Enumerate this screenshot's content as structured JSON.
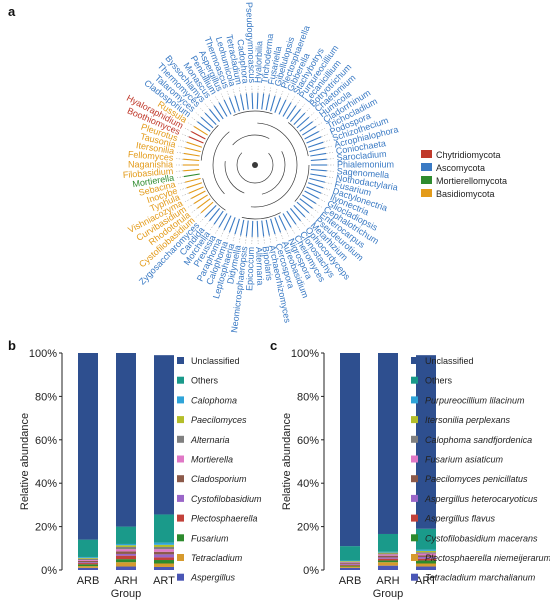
{
  "panel_labels": {
    "a": "a",
    "b": "b",
    "c": "c"
  },
  "phylum_colors": {
    "Chytridiomycota": "#c0392b",
    "Ascomycota": "#3a7ac4",
    "Mortierellomycota": "#2e8b2e",
    "Basidiomycota": "#e39b1a"
  },
  "chart_data": [
    {
      "type": "tree",
      "panel": "a",
      "legend": [
        "Chytridiomycota",
        "Ascomycota",
        "Mortierellomycota",
        "Basidiomycota"
      ],
      "tips": [
        {
          "name": "Hyalorbilia",
          "phylum": "Ascomycota"
        },
        {
          "name": "Trichoderma",
          "phylum": "Ascomycota"
        },
        {
          "name": "Fusariella",
          "phylum": "Ascomycota"
        },
        {
          "name": "Gibellulopsis",
          "phylum": "Ascomycota"
        },
        {
          "name": "Plectosphaerella",
          "phylum": "Ascomycota"
        },
        {
          "name": "Gibberella",
          "phylum": "Ascomycota"
        },
        {
          "name": "Stachybotrys",
          "phylum": "Ascomycota"
        },
        {
          "name": "Purpureocillium",
          "phylum": "Ascomycota"
        },
        {
          "name": "Lecanicillium",
          "phylum": "Ascomycota"
        },
        {
          "name": "Botryotrichum",
          "phylum": "Ascomycota"
        },
        {
          "name": "Chaetomium",
          "phylum": "Ascomycota"
        },
        {
          "name": "Humicola",
          "phylum": "Ascomycota"
        },
        {
          "name": "Cladorrhinum",
          "phylum": "Ascomycota"
        },
        {
          "name": "Trichocladium",
          "phylum": "Ascomycota"
        },
        {
          "name": "Podospora",
          "phylum": "Ascomycota"
        },
        {
          "name": "Schizothecium",
          "phylum": "Ascomycota"
        },
        {
          "name": "Acrophialophora",
          "phylum": "Ascomycota"
        },
        {
          "name": "Coniochaeta",
          "phylum": "Ascomycota"
        },
        {
          "name": "Sarocladium",
          "phylum": "Ascomycota"
        },
        {
          "name": "Phialemonium",
          "phylum": "Ascomycota"
        },
        {
          "name": "Sagenomella",
          "phylum": "Ascomycota"
        },
        {
          "name": "Nothodactylaria",
          "phylum": "Ascomycota"
        },
        {
          "name": "Fusarium",
          "phylum": "Ascomycota"
        },
        {
          "name": "Dactylonectria",
          "phylum": "Ascomycota"
        },
        {
          "name": "Ilyonectria",
          "phylum": "Ascomycota"
        },
        {
          "name": "Gliocladiopsis",
          "phylum": "Ascomycota"
        },
        {
          "name": "Cephalotrichum",
          "phylum": "Ascomycota"
        },
        {
          "name": "Enterocarpus",
          "phylum": "Ascomycota"
        },
        {
          "name": "Pseudeurotium",
          "phylum": "Ascomycota"
        },
        {
          "name": "Metarhizium",
          "phylum": "Ascomycota"
        },
        {
          "name": "Ophiocordyceps",
          "phylum": "Ascomycota"
        },
        {
          "name": "Clonostachys",
          "phylum": "Ascomycota"
        },
        {
          "name": "Cheiromyces",
          "phylum": "Ascomycota"
        },
        {
          "name": "Nigrospora",
          "phylum": "Ascomycota"
        },
        {
          "name": "Aureobasidium",
          "phylum": "Ascomycota"
        },
        {
          "name": "Cercospora",
          "phylum": "Ascomycota"
        },
        {
          "name": "Archaeorhizomyces",
          "phylum": "Ascomycota"
        },
        {
          "name": "Bipolaris",
          "phylum": "Ascomycota"
        },
        {
          "name": "Alternaria",
          "phylum": "Ascomycota"
        },
        {
          "name": "Epicoccum",
          "phylum": "Ascomycota"
        },
        {
          "name": "Neomicrosphaeropsis",
          "phylum": "Ascomycota"
        },
        {
          "name": "Didymella",
          "phylum": "Ascomycota"
        },
        {
          "name": "Leptosphaeria",
          "phylum": "Ascomycota"
        },
        {
          "name": "Calophoma",
          "phylum": "Ascomycota"
        },
        {
          "name": "Paraphoma",
          "phylum": "Ascomycota"
        },
        {
          "name": "Preussia",
          "phylum": "Ascomycota"
        },
        {
          "name": "Morchella",
          "phylum": "Ascomycota"
        },
        {
          "name": "Candida",
          "phylum": "Ascomycota"
        },
        {
          "name": "Zygosaccharomyces",
          "phylum": "Ascomycota"
        },
        {
          "name": "Cystofilobasidium",
          "phylum": "Basidiomycota"
        },
        {
          "name": "Rhodotorula",
          "phylum": "Basidiomycota"
        },
        {
          "name": "Curvibasidium",
          "phylum": "Basidiomycota"
        },
        {
          "name": "Vishniacozyma",
          "phylum": "Basidiomycota"
        },
        {
          "name": "Typhula",
          "phylum": "Basidiomycota"
        },
        {
          "name": "Inocybe",
          "phylum": "Basidiomycota"
        },
        {
          "name": "Sebacina",
          "phylum": "Basidiomycota"
        },
        {
          "name": "Mortierella",
          "phylum": "Mortierellomycota"
        },
        {
          "name": "Filobasidium",
          "phylum": "Basidiomycota"
        },
        {
          "name": "Naganishia",
          "phylum": "Basidiomycota"
        },
        {
          "name": "Fellomyces",
          "phylum": "Basidiomycota"
        },
        {
          "name": "Itersonilia",
          "phylum": "Basidiomycota"
        },
        {
          "name": "Tausonia",
          "phylum": "Basidiomycota"
        },
        {
          "name": "Pleurotus",
          "phylum": "Basidiomycota"
        },
        {
          "name": "Boothiomyces",
          "phylum": "Chytridiomycota"
        },
        {
          "name": "Hyaloraphidium",
          "phylum": "Chytridiomycota"
        },
        {
          "name": "Russula",
          "phylum": "Basidiomycota"
        },
        {
          "name": "Cladosporium",
          "phylum": "Ascomycota"
        },
        {
          "name": "Talaromyces",
          "phylum": "Ascomycota"
        },
        {
          "name": "Thermomyces",
          "phylum": "Ascomycota"
        },
        {
          "name": "Byssochlamys",
          "phylum": "Ascomycota"
        },
        {
          "name": "Monascus",
          "phylum": "Ascomycota"
        },
        {
          "name": "Penicillium",
          "phylum": "Ascomycota"
        },
        {
          "name": "Aspergillus",
          "phylum": "Ascomycota"
        },
        {
          "name": "Thermoascus",
          "phylum": "Ascomycota"
        },
        {
          "name": "Leohumicola",
          "phylum": "Ascomycota"
        },
        {
          "name": "Tetracladium",
          "phylum": "Ascomycota"
        },
        {
          "name": "Cadophora",
          "phylum": "Ascomycota"
        },
        {
          "name": "Pseudogymnoascus",
          "phylum": "Ascomycota"
        }
      ]
    },
    {
      "type": "bar",
      "stacked": true,
      "panel": "b",
      "xlabel": "Group",
      "ylabel": "Relative abundance",
      "categories": [
        "ARB",
        "ARH",
        "ART"
      ],
      "yticks": [
        "0%",
        "20%",
        "40%",
        "60%",
        "80%",
        "100%"
      ],
      "ylim": [
        0,
        100
      ],
      "series": [
        {
          "name": "Aspergillus",
          "color": "#4a56b5",
          "italic": true,
          "values": [
            1.0,
            1.6,
            1.4
          ]
        },
        {
          "name": "Tetracladium",
          "color": "#d69a2e",
          "italic": true,
          "values": [
            0.8,
            2.0,
            1.6
          ]
        },
        {
          "name": "Fusarium",
          "color": "#2d8a2d",
          "italic": true,
          "values": [
            0.8,
            1.4,
            1.6
          ]
        },
        {
          "name": "Plectosphaerella",
          "color": "#c2413a",
          "italic": true,
          "values": [
            0.6,
            1.6,
            1.2
          ]
        },
        {
          "name": "Cystofilobasidium",
          "color": "#9a66c8",
          "italic": true,
          "values": [
            0.4,
            0.8,
            1.4
          ]
        },
        {
          "name": "Cladosporium",
          "color": "#8c5a4a",
          "italic": true,
          "values": [
            0.6,
            1.2,
            1.2
          ]
        },
        {
          "name": "Mortierella",
          "color": "#e078c6",
          "italic": true,
          "values": [
            0.4,
            1.0,
            1.2
          ]
        },
        {
          "name": "Alternaria",
          "color": "#808080",
          "italic": true,
          "values": [
            0.6,
            1.0,
            1.0
          ]
        },
        {
          "name": "Paecilomyces",
          "color": "#b4be2a",
          "italic": true,
          "values": [
            0.4,
            0.8,
            1.0
          ]
        },
        {
          "name": "Calophoma",
          "color": "#2fa4d8",
          "italic": true,
          "values": [
            0.4,
            0.6,
            1.0
          ]
        },
        {
          "name": "Others",
          "color": "#1a9a8a",
          "italic": false,
          "values": [
            8.0,
            8.0,
            13.0
          ]
        },
        {
          "name": "Unclassified",
          "color": "#2e4f8f",
          "italic": false,
          "values": [
            86.0,
            80.0,
            73.4
          ]
        }
      ]
    },
    {
      "type": "bar",
      "stacked": true,
      "panel": "c",
      "xlabel": "Group",
      "ylabel": "Relative abundance",
      "categories": [
        "ARB",
        "ARH",
        "ART"
      ],
      "yticks": [
        "0%",
        "20%",
        "40%",
        "60%",
        "80%",
        "100%"
      ],
      "ylim": [
        0,
        100
      ],
      "series": [
        {
          "name": "Tetracladium marchalianum",
          "color": "#4a56b5",
          "italic": true,
          "values": [
            1.0,
            2.0,
            1.6
          ]
        },
        {
          "name": "Plectosphaerella niemeijerarum",
          "color": "#d69a2e",
          "italic": true,
          "values": [
            0.6,
            1.6,
            1.4
          ]
        },
        {
          "name": "Cystofilobasidium macerans",
          "color": "#2d8a2d",
          "italic": true,
          "values": [
            0.4,
            0.8,
            1.4
          ]
        },
        {
          "name": "Aspergillus flavus",
          "color": "#c2413a",
          "italic": true,
          "values": [
            0.4,
            0.8,
            0.8
          ]
        },
        {
          "name": "Aspergillus heterocaryoticus",
          "color": "#9a66c8",
          "italic": true,
          "values": [
            0.4,
            0.6,
            0.8
          ]
        },
        {
          "name": "Paecilomyces penicillatus",
          "color": "#8c5a4a",
          "italic": true,
          "values": [
            0.4,
            0.8,
            0.8
          ]
        },
        {
          "name": "Fusarium asiaticum",
          "color": "#e078c6",
          "italic": true,
          "values": [
            0.3,
            0.6,
            0.8
          ]
        },
        {
          "name": "Calophoma sandfjordenica",
          "color": "#808080",
          "italic": true,
          "values": [
            0.3,
            0.4,
            0.6
          ]
        },
        {
          "name": "Itersonilia perplexans",
          "color": "#b4be2a",
          "italic": true,
          "values": [
            0.3,
            0.4,
            0.6
          ]
        },
        {
          "name": "Purpureocillium lilacinum",
          "color": "#2fa4d8",
          "italic": true,
          "values": [
            0.3,
            0.4,
            0.6
          ]
        },
        {
          "name": "Others",
          "color": "#1a9a8a",
          "italic": false,
          "values": [
            6.6,
            8.2,
            9.6
          ]
        },
        {
          "name": "Unclassified",
          "color": "#2e4f8f",
          "italic": false,
          "values": [
            89.0,
            83.4,
            80.0
          ]
        }
      ]
    }
  ]
}
